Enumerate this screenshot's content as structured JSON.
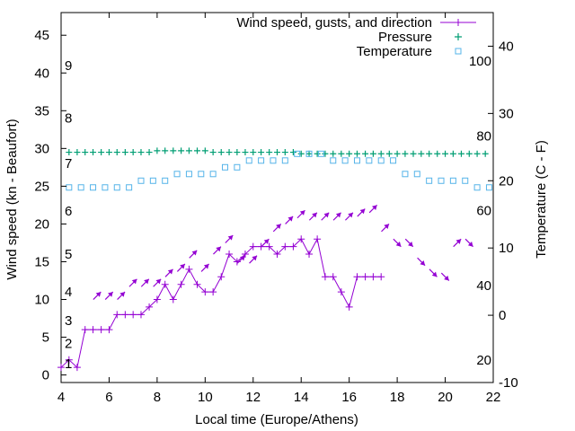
{
  "chart_data": {
    "type": "line",
    "title": "",
    "xlabel": "Local time (Europe/Athens)",
    "ylabel": "Wind speed (kn - Beaufort)",
    "y2label": "Temperature (C - F)",
    "xlim": [
      4,
      22
    ],
    "ylim": [
      -1,
      48
    ],
    "y2lim": [
      -10,
      45
    ],
    "x_ticks": [
      "4",
      "6",
      "8",
      "10",
      "12",
      "14",
      "16",
      "18",
      "20",
      "22"
    ],
    "y_ticks": [
      "0",
      "5",
      "10",
      "15",
      "20",
      "25",
      "30",
      "35",
      "40",
      "45"
    ],
    "y2_ticks": [
      "-10",
      "0",
      "10",
      "20",
      "30",
      "40"
    ],
    "beaufort_labels": [
      "1",
      "2",
      "3",
      "4",
      "5",
      "6",
      "7",
      "8",
      "9"
    ],
    "fahrenheit_labels": [
      "20",
      "40",
      "60",
      "80",
      "100"
    ],
    "grid": false,
    "legend_position": "top-right",
    "colors": {
      "wind": "#9400d3",
      "pressure": "#009e73",
      "temperature": "#56b4e9"
    },
    "series": [
      {
        "name": "Wind speed, gusts, and direction",
        "axis": "left",
        "x": [
          4.0,
          4.33,
          4.67,
          5.0,
          5.33,
          5.67,
          6.0,
          6.33,
          6.67,
          7.0,
          7.33,
          7.67,
          8.0,
          8.33,
          8.67,
          9.0,
          9.33,
          9.67,
          10.0,
          10.33,
          10.67,
          11.0,
          11.33,
          11.67,
          12.0,
          12.33,
          12.67,
          13.0,
          13.33,
          13.67,
          14.0,
          14.33,
          14.67,
          15.0,
          15.33,
          15.67,
          16.0,
          16.33,
          16.67,
          17.0,
          17.33,
          17.67,
          18.0,
          18.33,
          18.67,
          19.0,
          19.33,
          19.67,
          20.0,
          20.33,
          20.67,
          21.0,
          21.33,
          21.67,
          22.0
        ],
        "values": [
          1,
          2,
          1,
          6,
          6,
          6,
          6,
          8,
          8,
          8,
          8,
          9,
          10,
          12,
          10,
          12,
          14,
          12,
          11,
          11,
          13,
          16,
          15,
          16,
          17,
          17,
          17,
          16,
          17,
          17,
          18,
          16,
          18,
          13,
          13,
          11,
          9,
          13,
          13,
          13,
          13,
          null,
          null,
          null,
          null,
          null,
          null,
          null,
          null,
          null,
          null,
          null,
          null,
          null,
          null
        ]
      },
      {
        "name": "Pressure",
        "axis": "left",
        "x": [
          4.33,
          4.67,
          5.0,
          5.33,
          5.67,
          6.0,
          6.33,
          6.67,
          7.0,
          7.33,
          7.67,
          8.0,
          8.33,
          8.67,
          9.0,
          9.33,
          9.67,
          10.0,
          10.33,
          10.67,
          11.0,
          11.33,
          11.67,
          12.0,
          12.33,
          12.67,
          13.0,
          13.33,
          13.67,
          14.0,
          14.33,
          14.67,
          15.0,
          15.33,
          15.67,
          16.0,
          16.33,
          16.67,
          17.0,
          17.33,
          17.67,
          18.0,
          18.33,
          18.67,
          19.0,
          19.33,
          19.67,
          20.0,
          20.33,
          20.67,
          21.0,
          21.33,
          21.67
        ],
        "values": [
          29.5,
          29.5,
          29.5,
          29.5,
          29.5,
          29.5,
          29.5,
          29.5,
          29.5,
          29.5,
          29.5,
          29.7,
          29.7,
          29.7,
          29.7,
          29.7,
          29.7,
          29.7,
          29.5,
          29.5,
          29.5,
          29.5,
          29.5,
          29.5,
          29.5,
          29.5,
          29.5,
          29.5,
          29.5,
          29.3,
          29.3,
          29.3,
          29.3,
          29.3,
          29.3,
          29.3,
          29.3,
          29.3,
          29.3,
          29.3,
          29.3,
          29.3,
          29.3,
          29.3,
          29.3,
          29.3,
          29.3,
          29.3,
          29.3,
          29.3,
          29.3,
          29.3,
          29.3
        ]
      },
      {
        "name": "Temperature",
        "axis": "right",
        "x": [
          4.33,
          4.83,
          5.33,
          5.83,
          6.33,
          6.83,
          7.33,
          7.83,
          8.33,
          8.83,
          9.33,
          9.83,
          10.33,
          10.83,
          11.33,
          11.83,
          12.33,
          12.83,
          13.33,
          13.83,
          14.33,
          14.83,
          15.33,
          15.83,
          16.33,
          16.83,
          17.33,
          17.83,
          18.33,
          18.83,
          19.33,
          19.83,
          20.33,
          20.83,
          21.33,
          21.83
        ],
        "values": [
          19,
          19,
          19,
          19,
          19,
          19,
          20,
          20,
          20,
          21,
          21,
          21,
          21,
          22,
          22,
          23,
          23,
          23,
          23,
          24,
          24,
          24,
          23,
          23,
          23,
          23,
          23,
          23,
          21,
          21,
          20,
          20,
          20,
          20,
          19,
          19
        ]
      }
    ],
    "wind_arrows": [
      {
        "x": 5.5,
        "y": 10.5,
        "dir": 225
      },
      {
        "x": 6.0,
        "y": 10.5,
        "dir": 225
      },
      {
        "x": 6.5,
        "y": 10.5,
        "dir": 225
      },
      {
        "x": 7.0,
        "y": 12.2,
        "dir": 225
      },
      {
        "x": 7.5,
        "y": 12.2,
        "dir": 225
      },
      {
        "x": 8.0,
        "y": 12.2,
        "dir": 225
      },
      {
        "x": 8.5,
        "y": 13.5,
        "dir": 225
      },
      {
        "x": 9.0,
        "y": 14.2,
        "dir": 225
      },
      {
        "x": 9.5,
        "y": 16.0,
        "dir": 225
      },
      {
        "x": 10.0,
        "y": 14.2,
        "dir": 225
      },
      {
        "x": 10.5,
        "y": 16.5,
        "dir": 225
      },
      {
        "x": 11.0,
        "y": 18.0,
        "dir": 225
      },
      {
        "x": 11.5,
        "y": 15.3,
        "dir": 225
      },
      {
        "x": 12.0,
        "y": 15.3,
        "dir": 225
      },
      {
        "x": 12.5,
        "y": 17.5,
        "dir": 225
      },
      {
        "x": 13.0,
        "y": 19.5,
        "dir": 225
      },
      {
        "x": 13.5,
        "y": 20.5,
        "dir": 225
      },
      {
        "x": 14.0,
        "y": 21.3,
        "dir": 225
      },
      {
        "x": 14.5,
        "y": 21.0,
        "dir": 225
      },
      {
        "x": 15.0,
        "y": 21.0,
        "dir": 225
      },
      {
        "x": 15.5,
        "y": 21.0,
        "dir": 225
      },
      {
        "x": 16.0,
        "y": 21.0,
        "dir": 225
      },
      {
        "x": 16.5,
        "y": 21.5,
        "dir": 225
      },
      {
        "x": 17.0,
        "y": 22.0,
        "dir": 225
      },
      {
        "x": 17.5,
        "y": 19.5,
        "dir": 225
      },
      {
        "x": 18.0,
        "y": 17.5,
        "dir": 315
      },
      {
        "x": 18.5,
        "y": 17.5,
        "dir": 315
      },
      {
        "x": 19.0,
        "y": 15.0,
        "dir": 315
      },
      {
        "x": 19.5,
        "y": 13.5,
        "dir": 315
      },
      {
        "x": 20.0,
        "y": 13.0,
        "dir": 315
      },
      {
        "x": 20.5,
        "y": 17.5,
        "dir": 225
      },
      {
        "x": 21.0,
        "y": 17.5,
        "dir": 315
      }
    ]
  }
}
